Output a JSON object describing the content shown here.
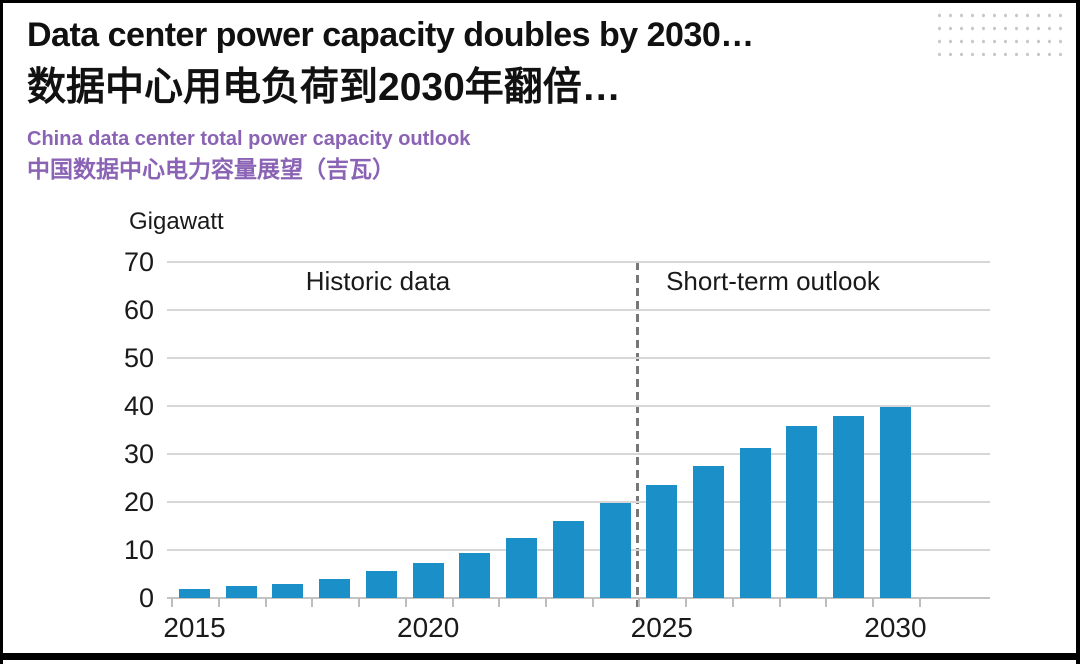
{
  "header": {
    "title_en": "Data center power capacity doubles by 2030…",
    "title_zh": "数据中心用电负荷到2030年翻倍…",
    "subtitle_en": "China data center total power capacity outlook",
    "subtitle_zh": "中国数据中心电力容量展望（吉瓦）",
    "subtitle_color": "#8a63b5"
  },
  "chart_data": {
    "type": "bar",
    "title": "China data center total power capacity outlook",
    "unit_label": "Gigawatt",
    "categories": [
      2015,
      2016,
      2017,
      2018,
      2019,
      2020,
      2021,
      2022,
      2023,
      2024,
      2025,
      2026,
      2027,
      2028,
      2029,
      2030
    ],
    "values": [
      1.8,
      2.4,
      2.9,
      4.0,
      5.7,
      7.2,
      9.4,
      12.5,
      16.0,
      19.8,
      23.6,
      27.6,
      31.3,
      35.8,
      38.0,
      39.8
    ],
    "ylim": [
      0,
      70
    ],
    "y_ticks": [
      0,
      10,
      20,
      30,
      40,
      50,
      60,
      70
    ],
    "x_tick_labels": [
      "2015",
      "2020",
      "2025",
      "2030"
    ],
    "xlabel": "",
    "ylabel": "Gigawatt",
    "grid": true,
    "legend": false,
    "bar_color": "#1a8fc8",
    "gridline_color": "#d7d7d7",
    "divider_after_year": 2024,
    "annotations": {
      "historic_label": "Historic data",
      "outlook_label": "Short-term outlook"
    }
  },
  "decoration": {
    "dot_grid": {
      "rows": 4,
      "cols": 12,
      "color": "#9a9a9a"
    }
  }
}
